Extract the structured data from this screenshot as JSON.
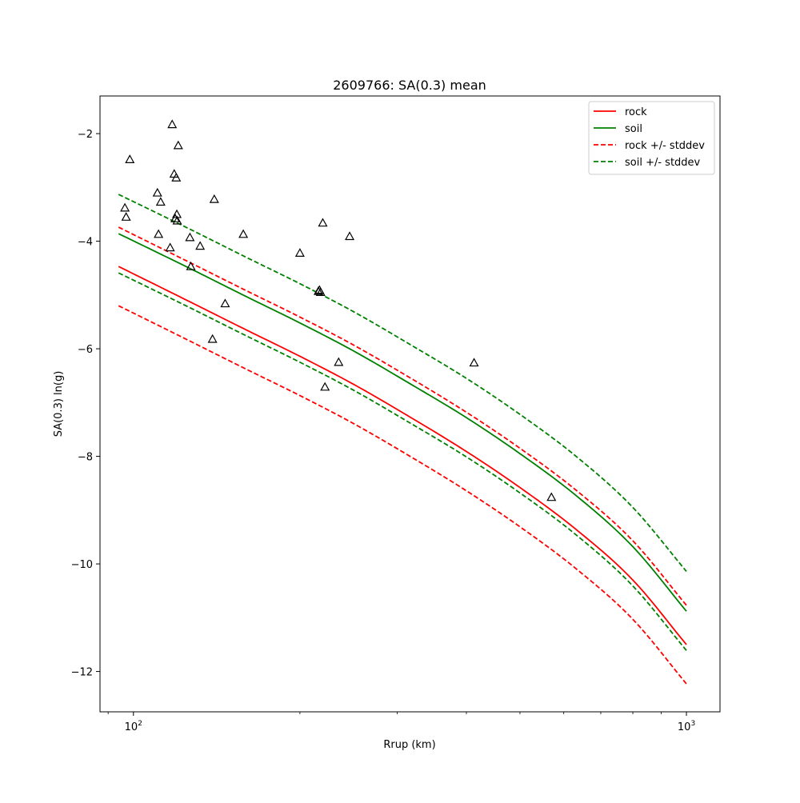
{
  "chart_data": {
    "type": "line",
    "title": "2609766: SA(0.3) mean",
    "xlabel": "Rrup (km)",
    "ylabel": "SA(0.3) ln(g)",
    "xscale": "log",
    "xlim": [
      87,
      1150
    ],
    "ylim": [
      -12.75,
      -1.3
    ],
    "x_ticks": [
      {
        "value": 100,
        "base": "10",
        "exp": "2"
      },
      {
        "value": 1000,
        "base": "10",
        "exp": "3"
      }
    ],
    "y_ticks": [
      {
        "value": -2,
        "label": "−2"
      },
      {
        "value": -4,
        "label": "−4"
      },
      {
        "value": -6,
        "label": "−6"
      },
      {
        "value": -8,
        "label": "−8"
      },
      {
        "value": -10,
        "label": "−10"
      },
      {
        "value": -12,
        "label": "−12"
      }
    ],
    "legend_position": "top-right",
    "grid": false,
    "series": [
      {
        "name": "rock",
        "style": "solid",
        "color": "#ff0000",
        "x": [
          94,
          125,
          160,
          200,
          250,
          320,
          400,
          500,
          630,
          800,
          1000
        ],
        "y": [
          -4.47,
          -5.1,
          -5.65,
          -6.14,
          -6.66,
          -7.3,
          -7.91,
          -8.58,
          -9.35,
          -10.3,
          -11.5
        ]
      },
      {
        "name": "soil",
        "style": "solid",
        "color": "#008000",
        "x": [
          94,
          125,
          160,
          200,
          250,
          320,
          400,
          500,
          630,
          800,
          1000
        ],
        "y": [
          -3.86,
          -4.48,
          -5.03,
          -5.52,
          -6.04,
          -6.68,
          -7.28,
          -7.95,
          -8.72,
          -9.68,
          -10.88
        ]
      },
      {
        "name": "rock +/- stddev",
        "style": "dashed",
        "color": "#ff0000",
        "x": [
          94,
          125,
          160,
          200,
          250,
          320,
          400,
          500,
          630,
          800,
          1000
        ],
        "y": [
          -3.74,
          -4.37,
          -4.92,
          -5.41,
          -5.93,
          -6.57,
          -7.18,
          -7.85,
          -8.62,
          -9.57,
          -10.77
        ]
      },
      {
        "name": "",
        "style": "dashed",
        "color": "#ff0000",
        "x": [
          94,
          125,
          160,
          200,
          250,
          320,
          400,
          500,
          630,
          800,
          1000
        ],
        "y": [
          -5.2,
          -5.83,
          -6.38,
          -6.87,
          -7.39,
          -8.03,
          -8.64,
          -9.31,
          -10.08,
          -11.03,
          -12.23
        ]
      },
      {
        "name": "soil +/- stddev",
        "style": "dashed",
        "color": "#008000",
        "x": [
          94,
          125,
          160,
          200,
          250,
          320,
          400,
          500,
          630,
          800,
          1000
        ],
        "y": [
          -3.13,
          -3.75,
          -4.3,
          -4.79,
          -5.31,
          -5.95,
          -6.55,
          -7.22,
          -7.99,
          -8.95,
          -10.14
        ]
      },
      {
        "name": "",
        "style": "dashed",
        "color": "#008000",
        "x": [
          94,
          125,
          160,
          200,
          250,
          320,
          400,
          500,
          630,
          800,
          1000
        ],
        "y": [
          -4.59,
          -5.21,
          -5.76,
          -6.25,
          -6.77,
          -7.41,
          -8.01,
          -8.68,
          -9.45,
          -10.41,
          -11.61
        ]
      }
    ],
    "observations": {
      "marker": "triangle",
      "color": "#000000",
      "points": [
        {
          "x": 96.5,
          "y": -3.38
        },
        {
          "x": 97.0,
          "y": -3.55
        },
        {
          "x": 98.5,
          "y": -2.48
        },
        {
          "x": 110.5,
          "y": -3.1
        },
        {
          "x": 111.0,
          "y": -3.87
        },
        {
          "x": 112.0,
          "y": -3.27
        },
        {
          "x": 116.5,
          "y": -4.12
        },
        {
          "x": 117.5,
          "y": -1.83
        },
        {
          "x": 118.5,
          "y": -2.75
        },
        {
          "x": 119.0,
          "y": -3.58
        },
        {
          "x": 119.5,
          "y": -2.82
        },
        {
          "x": 119.8,
          "y": -3.5
        },
        {
          "x": 120.0,
          "y": -3.62
        },
        {
          "x": 120.5,
          "y": -2.22
        },
        {
          "x": 126.5,
          "y": -3.93
        },
        {
          "x": 127.0,
          "y": -4.47
        },
        {
          "x": 132.0,
          "y": -4.09
        },
        {
          "x": 139.0,
          "y": -5.82
        },
        {
          "x": 140.0,
          "y": -3.22
        },
        {
          "x": 146.5,
          "y": -5.16
        },
        {
          "x": 158.0,
          "y": -3.87
        },
        {
          "x": 200.0,
          "y": -4.22
        },
        {
          "x": 216.0,
          "y": -4.93
        },
        {
          "x": 217.0,
          "y": -4.91
        },
        {
          "x": 218.0,
          "y": -4.95
        },
        {
          "x": 220.0,
          "y": -3.66
        },
        {
          "x": 222.0,
          "y": -6.71
        },
        {
          "x": 235.0,
          "y": -6.25
        },
        {
          "x": 246.0,
          "y": -3.91
        },
        {
          "x": 413.0,
          "y": -6.26
        },
        {
          "x": 570.0,
          "y": -8.76
        }
      ]
    }
  }
}
